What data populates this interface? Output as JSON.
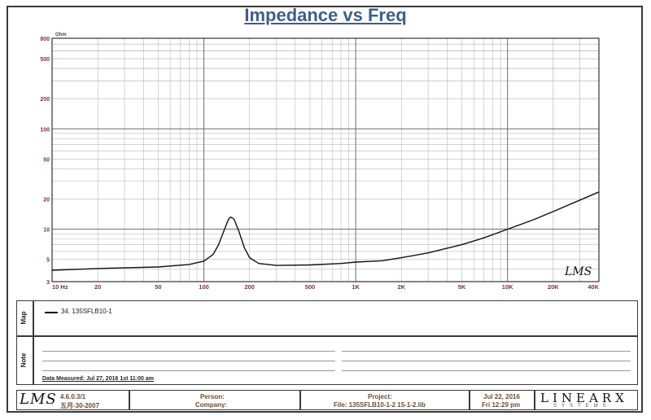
{
  "chart_data": {
    "type": "line",
    "title": "Impedance vs Freq",
    "ylabel": "Ohm",
    "x_scale": "log",
    "y_scale": "log",
    "xlim": [
      10,
      40000
    ],
    "ylim": [
      3,
      800
    ],
    "x_ticks": [
      10,
      20,
      50,
      100,
      200,
      500,
      1000,
      2000,
      5000,
      10000,
      20000,
      40000
    ],
    "x_tick_labels": [
      "10 Hz",
      "20",
      "50",
      "100",
      "200",
      "500",
      "1K",
      "2K",
      "5K",
      "10K",
      "20K",
      "40K"
    ],
    "y_ticks": [
      3,
      5,
      10,
      20,
      50,
      100,
      200,
      500,
      800
    ],
    "y_tick_labels": [
      "3",
      "5",
      "10",
      "20",
      "50",
      "100",
      "200",
      "500",
      "800"
    ],
    "grid": true,
    "series": [
      {
        "name": "34. 135SFLB10-1",
        "color": "#111111",
        "points": [
          [
            10,
            3.9
          ],
          [
            20,
            4.05
          ],
          [
            50,
            4.2
          ],
          [
            80,
            4.45
          ],
          [
            100,
            4.8
          ],
          [
            115,
            5.6
          ],
          [
            125,
            7.0
          ],
          [
            135,
            9.5
          ],
          [
            145,
            12.5
          ],
          [
            150,
            13.2
          ],
          [
            158,
            12.6
          ],
          [
            170,
            9.5
          ],
          [
            185,
            6.5
          ],
          [
            200,
            5.2
          ],
          [
            230,
            4.55
          ],
          [
            300,
            4.35
          ],
          [
            500,
            4.4
          ],
          [
            800,
            4.55
          ],
          [
            1000,
            4.7
          ],
          [
            1500,
            4.85
          ],
          [
            2000,
            5.2
          ],
          [
            3000,
            5.8
          ],
          [
            5000,
            7.0
          ],
          [
            7000,
            8.2
          ],
          [
            10000,
            10.0
          ],
          [
            15000,
            12.5
          ],
          [
            20000,
            15.0
          ],
          [
            30000,
            19.5
          ],
          [
            40000,
            23.5
          ]
        ]
      }
    ],
    "watermark": "LMS"
  },
  "legend_panel": {
    "label": "Map",
    "entry": "34. 135SFLB10-1"
  },
  "note_panel": {
    "label": "Note",
    "measured": "Data Measured: Jul 27, 2016 1st 11:00 am"
  },
  "footer": {
    "logo": "LMS",
    "version_line1": "4.6.0.3/1",
    "version_line2": "五月-30-2007",
    "person_label": "Person:",
    "company_label": "Company:",
    "project_label": "Project:",
    "file_label": "File: 135SFLB10-1-2 15-1-2.lib",
    "date_line1": "Jul 22, 2016",
    "date_line2": "Fri 12:29 pm",
    "brand": "LINEARX",
    "brand_sub": "SYSTEMS"
  }
}
